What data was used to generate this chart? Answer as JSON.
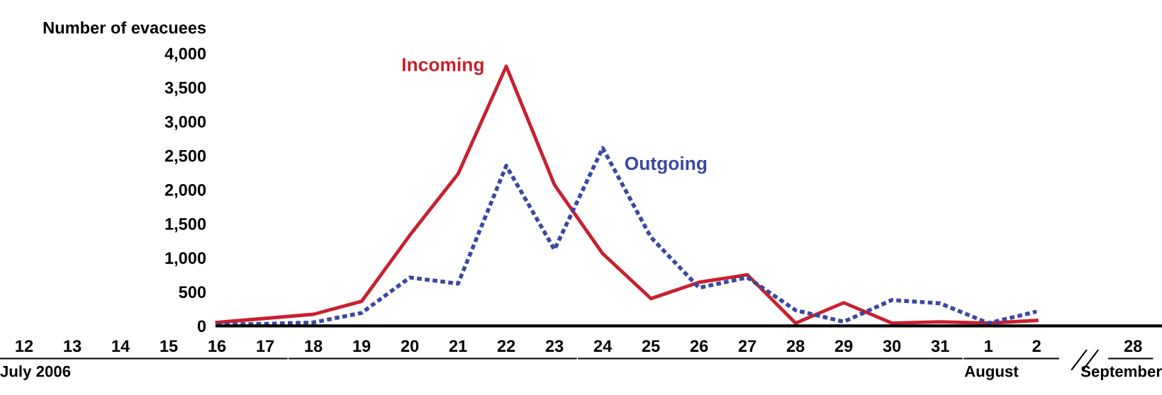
{
  "chart_data": {
    "type": "line",
    "ylabel": "Number of evacuees",
    "categories": [
      "12",
      "13",
      "14",
      "15",
      "16",
      "17",
      "18",
      "19",
      "20",
      "21",
      "22",
      "23",
      "24",
      "25",
      "26",
      "27",
      "28",
      "29",
      "30",
      "31",
      "1",
      "2",
      null,
      "28"
    ],
    "series": [
      {
        "name": "Incoming",
        "color": "#c8202f",
        "line_style": "solid",
        "values": [
          null,
          null,
          null,
          null,
          50,
          110,
          170,
          360,
          1330,
          2230,
          3810,
          2070,
          1060,
          400,
          640,
          750,
          40,
          340,
          40,
          60,
          40,
          80,
          null,
          null
        ]
      },
      {
        "name": "Outgoing",
        "color": "#3a48a0",
        "line_style": "dotted",
        "values": [
          null,
          null,
          null,
          null,
          20,
          30,
          50,
          190,
          710,
          620,
          2350,
          1120,
          2610,
          1300,
          560,
          710,
          230,
          60,
          380,
          330,
          40,
          210,
          null,
          null
        ]
      }
    ],
    "ylim": [
      0,
      4000
    ],
    "yticks": [
      {
        "value": 0,
        "label": "0"
      },
      {
        "value": 500,
        "label": "500"
      },
      {
        "value": 1000,
        "label": "1,000"
      },
      {
        "value": 1500,
        "label": "1,500"
      },
      {
        "value": 2000,
        "label": "2,000"
      },
      {
        "value": 2500,
        "label": "2,500"
      },
      {
        "value": 3000,
        "label": "3,000"
      },
      {
        "value": 3500,
        "label": "3,500"
      },
      {
        "value": 4000,
        "label": "4,000"
      }
    ],
    "grid": false,
    "legend": false,
    "marker": "none",
    "annotations": [
      "July 2006",
      "August",
      "September"
    ]
  }
}
